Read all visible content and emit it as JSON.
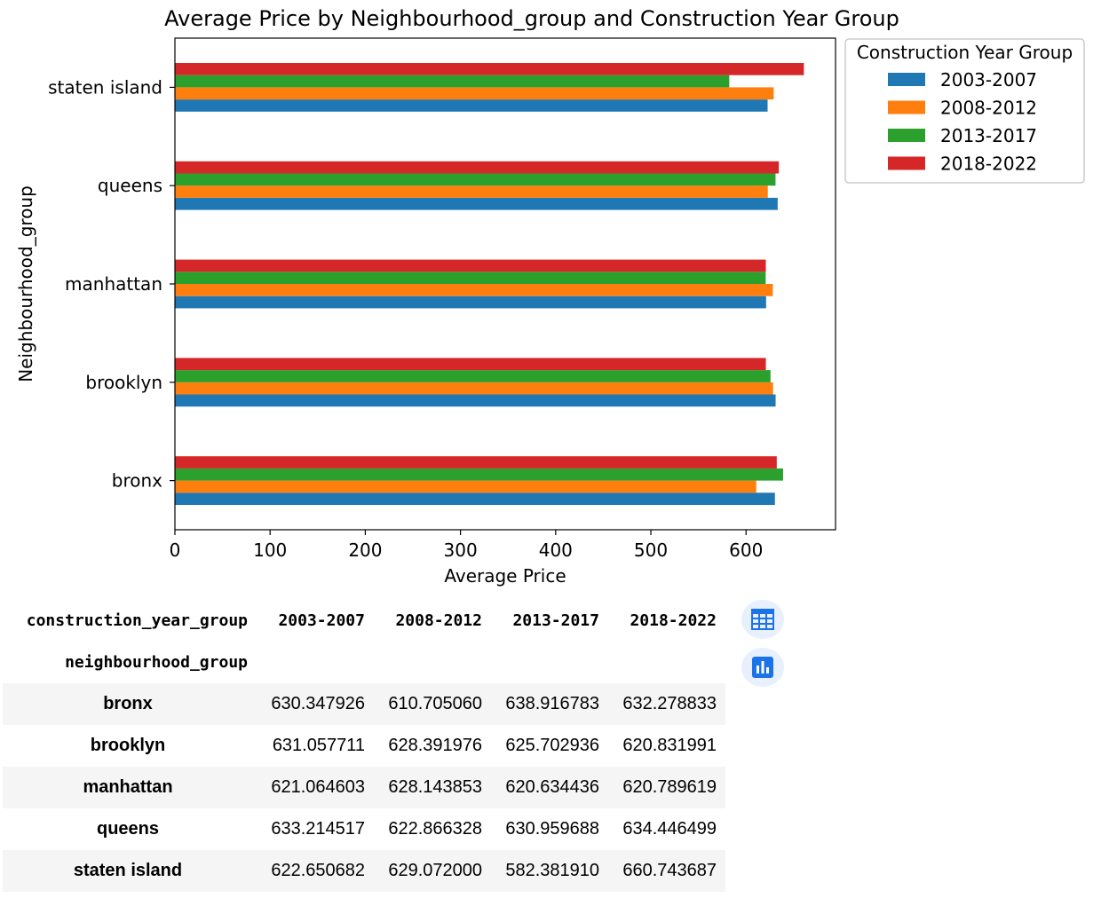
{
  "chart_data": {
    "type": "bar",
    "orientation": "horizontal",
    "title": "Average Price by Neighbourhood_group and Construction Year Group",
    "xlabel": "Average Price",
    "ylabel": "Neighbourhood_group",
    "xlim": [
      0,
      694
    ],
    "xticks": [
      "0",
      "100",
      "200",
      "300",
      "400",
      "500",
      "600"
    ],
    "categories": [
      "bronx",
      "brooklyn",
      "manhattan",
      "queens",
      "staten island"
    ],
    "legend": {
      "title": "Construction Year Group",
      "placement": "outside-top-right"
    },
    "grid": false,
    "series": [
      {
        "name": "2003-2007",
        "color": "#1f77b4",
        "values": [
          630.347926,
          631.057711,
          621.064603,
          633.214517,
          622.650682
        ]
      },
      {
        "name": "2008-2012",
        "color": "#ff7f0e",
        "values": [
          610.70506,
          628.391976,
          628.143853,
          622.866328,
          629.072
        ]
      },
      {
        "name": "2013-2017",
        "color": "#2ca02c",
        "values": [
          638.916783,
          625.702936,
          620.634436,
          630.959688,
          582.38191
        ]
      },
      {
        "name": "2018-2022",
        "color": "#d62728",
        "values": [
          632.278833,
          620.831991,
          620.789619,
          634.446499,
          660.743687
        ]
      }
    ]
  },
  "table": {
    "columns_name": "construction_year_group",
    "index_name": "neighbourhood_group",
    "columns": [
      "2003-2007",
      "2008-2012",
      "2013-2017",
      "2018-2022"
    ],
    "rows": [
      {
        "label": "bronx",
        "values": [
          "630.347926",
          "610.705060",
          "638.916783",
          "632.278833"
        ]
      },
      {
        "label": "brooklyn",
        "values": [
          "631.057711",
          "628.391976",
          "625.702936",
          "620.831991"
        ]
      },
      {
        "label": "manhattan",
        "values": [
          "621.064603",
          "628.143853",
          "620.634436",
          "620.789619"
        ]
      },
      {
        "label": "queens",
        "values": [
          "633.214517",
          "622.866328",
          "630.959688",
          "634.446499"
        ]
      },
      {
        "label": "staten island",
        "values": [
          "622.650682",
          "629.072000",
          "582.381910",
          "660.743687"
        ]
      }
    ]
  },
  "side_buttons": [
    {
      "icon": "table-icon"
    },
    {
      "icon": "bar-chart-icon"
    }
  ],
  "colors": {
    "accent": "#1a73e8",
    "button_bg": "#e8f0fe"
  }
}
